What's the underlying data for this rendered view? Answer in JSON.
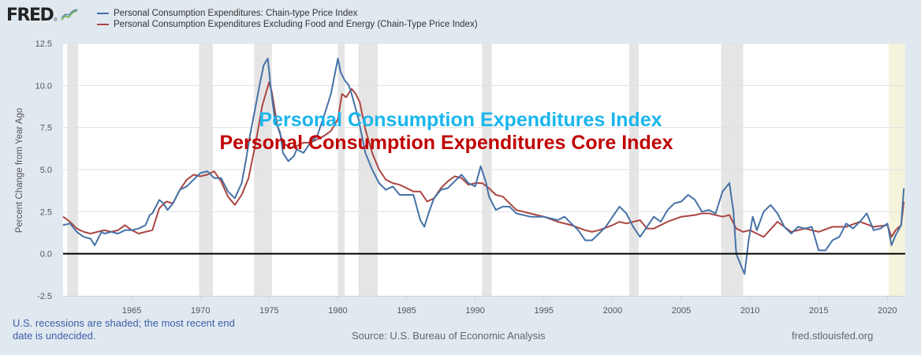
{
  "logo": {
    "text": "FRED",
    "reg": "®",
    "icon": "line-chart-icon"
  },
  "legend": [
    {
      "label": "Personal Consumption Expenditures: Chain-type Price Index",
      "color": "#4572a7"
    },
    {
      "label": "Personal Consumption Expenditures Excluding Food and Energy (Chain-Type Price Index)",
      "color": "#aa4643"
    }
  ],
  "overlay": {
    "line1": "Personal Consumption Expenditures Index",
    "line1_color": "#1ab6ec",
    "line2": "Personal Consumption Expenditures Core Index",
    "line2_color": "#c00000"
  },
  "footer": {
    "note": "U.S. recessions are shaded; the most recent end date is undecided.",
    "source": "Source: U.S. Bureau of Economic Analysis",
    "url": "fred.stlouisfed.org"
  },
  "chart_data": {
    "type": "line",
    "title": "",
    "xlabel": "",
    "ylabel": "Percent Change from Year Ago",
    "xlim": [
      1960.0,
      2021.3
    ],
    "ylim": [
      -2.5,
      12.5
    ],
    "yticks": [
      "12.5",
      "10.0",
      "7.5",
      "5.0",
      "2.5",
      "0.0",
      "-2.5"
    ],
    "ytick_values": [
      12.5,
      10.0,
      7.5,
      5.0,
      2.5,
      0.0,
      -2.5
    ],
    "xticks": [
      "1965",
      "1970",
      "1975",
      "1980",
      "1985",
      "1990",
      "1995",
      "2000",
      "2005",
      "2010",
      "2015",
      "2020"
    ],
    "xtick_values": [
      1965,
      1970,
      1975,
      1980,
      1985,
      1990,
      1995,
      2000,
      2005,
      2010,
      2015,
      2020
    ],
    "grid": true,
    "zero_line": true,
    "legend_position": "top-left",
    "recessions": [
      [
        1960.3,
        1961.1
      ],
      [
        1969.9,
        1970.9
      ],
      [
        1973.9,
        1975.2
      ],
      [
        1980.0,
        1980.5
      ],
      [
        1981.5,
        1982.9
      ],
      [
        1990.5,
        1991.2
      ],
      [
        2001.2,
        2001.9
      ],
      [
        2007.9,
        2009.5
      ]
    ],
    "recession_undecided": [
      2020.1,
      2021.3
    ],
    "series": [
      {
        "name": "Personal Consumption Expenditures: Chain-type Price Index",
        "color": "#4572a7",
        "x": [
          1960.0,
          1960.5,
          1961.0,
          1961.5,
          1962.0,
          1962.3,
          1962.8,
          1963.0,
          1963.5,
          1964.0,
          1964.5,
          1965.0,
          1965.5,
          1966.0,
          1966.3,
          1966.5,
          1967.0,
          1967.3,
          1967.6,
          1968.0,
          1968.5,
          1969.0,
          1969.5,
          1970.0,
          1970.5,
          1971.0,
          1971.5,
          1972.0,
          1972.5,
          1973.0,
          1973.3,
          1973.6,
          1974.0,
          1974.3,
          1974.6,
          1974.9,
          1975.1,
          1975.4,
          1975.8,
          1976.0,
          1976.4,
          1976.8,
          1977.0,
          1977.5,
          1978.0,
          1978.5,
          1979.0,
          1979.5,
          1980.0,
          1980.2,
          1980.5,
          1980.8,
          1981.0,
          1981.5,
          1982.0,
          1982.5,
          1983.0,
          1983.5,
          1984.0,
          1984.5,
          1985.0,
          1985.5,
          1986.0,
          1986.3,
          1986.6,
          1987.0,
          1987.5,
          1988.0,
          1988.5,
          1989.0,
          1989.5,
          1990.0,
          1990.4,
          1990.8,
          1991.0,
          1991.5,
          1992.0,
          1992.5,
          1993.0,
          1994.0,
          1995.0,
          1996.0,
          1996.5,
          1997.0,
          1997.5,
          1998.0,
          1998.5,
          1999.0,
          1999.5,
          2000.0,
          2000.5,
          2001.0,
          2001.5,
          2002.0,
          2002.5,
          2003.0,
          2003.5,
          2004.0,
          2004.5,
          2005.0,
          2005.5,
          2006.0,
          2006.5,
          2007.0,
          2007.5,
          2008.0,
          2008.5,
          2008.8,
          2009.0,
          2009.3,
          2009.6,
          2009.9,
          2010.2,
          2010.5,
          2011.0,
          2011.5,
          2012.0,
          2012.5,
          2013.0,
          2013.5,
          2014.0,
          2014.5,
          2015.0,
          2015.5,
          2016.0,
          2016.5,
          2017.0,
          2017.5,
          2018.0,
          2018.5,
          2019.0,
          2019.5,
          2020.0,
          2020.3,
          2020.6,
          2021.0,
          2021.2
        ],
        "values": [
          1.7,
          1.8,
          1.3,
          1.0,
          0.9,
          0.5,
          1.3,
          1.2,
          1.3,
          1.2,
          1.4,
          1.4,
          1.5,
          1.7,
          2.3,
          2.4,
          3.2,
          3.0,
          2.6,
          3.0,
          3.8,
          4.0,
          4.4,
          4.8,
          4.9,
          4.5,
          4.5,
          3.7,
          3.3,
          4.2,
          5.5,
          7.0,
          8.7,
          10.0,
          11.2,
          11.6,
          10.0,
          8.0,
          7.2,
          6.0,
          5.5,
          5.8,
          6.2,
          6.0,
          6.6,
          7.0,
          8.2,
          9.5,
          11.6,
          10.8,
          10.3,
          10.0,
          9.5,
          8.0,
          6.0,
          5.0,
          4.2,
          3.8,
          4.0,
          3.5,
          3.5,
          3.5,
          2.0,
          1.6,
          2.4,
          3.3,
          3.8,
          3.9,
          4.3,
          4.7,
          4.2,
          4.0,
          5.2,
          4.2,
          3.4,
          2.6,
          2.8,
          2.8,
          2.4,
          2.2,
          2.2,
          2.0,
          2.2,
          1.8,
          1.4,
          0.8,
          0.8,
          1.2,
          1.6,
          2.2,
          2.8,
          2.4,
          1.6,
          1.0,
          1.6,
          2.2,
          1.9,
          2.6,
          3.0,
          3.1,
          3.5,
          3.2,
          2.5,
          2.6,
          2.4,
          3.7,
          4.2,
          2.5,
          0.0,
          -0.6,
          -1.2,
          0.8,
          2.2,
          1.4,
          2.5,
          2.9,
          2.4,
          1.6,
          1.2,
          1.6,
          1.5,
          1.6,
          0.2,
          0.2,
          0.8,
          1.0,
          1.8,
          1.5,
          1.9,
          2.4,
          1.4,
          1.5,
          1.8,
          0.5,
          1.1,
          1.7,
          3.9
        ]
      },
      {
        "name": "Personal Consumption Expenditures Excluding Food and Energy (Chain-Type Price Index)",
        "color": "#aa4643",
        "x": [
          1960.0,
          1960.5,
          1961.0,
          1961.5,
          1962.0,
          1962.5,
          1963.0,
          1963.5,
          1964.0,
          1964.5,
          1965.0,
          1965.5,
          1966.0,
          1966.5,
          1967.0,
          1967.5,
          1968.0,
          1968.5,
          1969.0,
          1969.5,
          1970.0,
          1970.5,
          1971.0,
          1971.5,
          1972.0,
          1972.5,
          1973.0,
          1973.5,
          1974.0,
          1974.5,
          1975.0,
          1975.2,
          1975.6,
          1976.0,
          1976.5,
          1977.0,
          1977.5,
          1978.0,
          1978.5,
          1979.0,
          1979.5,
          1980.0,
          1980.3,
          1980.6,
          1981.0,
          1981.3,
          1981.6,
          1982.0,
          1982.5,
          1983.0,
          1983.5,
          1984.0,
          1984.5,
          1985.0,
          1985.5,
          1986.0,
          1986.5,
          1987.0,
          1987.5,
          1988.0,
          1988.5,
          1989.0,
          1989.5,
          1990.0,
          1990.5,
          1991.0,
          1991.5,
          1992.0,
          1992.5,
          1993.0,
          1994.0,
          1995.0,
          1996.0,
          1997.0,
          1998.0,
          1998.5,
          1999.0,
          2000.0,
          2000.5,
          2001.0,
          2002.0,
          2002.5,
          2003.0,
          2004.0,
          2005.0,
          2006.0,
          2006.5,
          2007.0,
          2008.0,
          2008.5,
          2009.0,
          2009.5,
          2010.0,
          2010.5,
          2011.0,
          2012.0,
          2013.0,
          2014.0,
          2015.0,
          2016.0,
          2017.0,
          2018.0,
          2019.0,
          2020.0,
          2020.3,
          2020.6,
          2021.0,
          2021.2
        ],
        "values": [
          2.2,
          1.9,
          1.5,
          1.3,
          1.2,
          1.3,
          1.4,
          1.3,
          1.4,
          1.7,
          1.4,
          1.2,
          1.3,
          1.4,
          2.7,
          3.1,
          3.0,
          3.8,
          4.4,
          4.7,
          4.6,
          4.7,
          4.9,
          4.3,
          3.4,
          2.9,
          3.5,
          4.5,
          6.5,
          8.8,
          10.2,
          9.6,
          7.6,
          6.6,
          6.3,
          6.4,
          6.6,
          6.6,
          6.8,
          7.0,
          7.3,
          8.0,
          9.5,
          9.3,
          9.8,
          9.5,
          9.0,
          7.4,
          6.0,
          5.0,
          4.4,
          4.2,
          4.1,
          3.9,
          3.7,
          3.7,
          3.1,
          3.3,
          3.9,
          4.3,
          4.6,
          4.5,
          4.1,
          4.2,
          4.2,
          3.9,
          3.5,
          3.4,
          3.0,
          2.6,
          2.4,
          2.2,
          1.9,
          1.7,
          1.4,
          1.3,
          1.4,
          1.7,
          1.9,
          1.8,
          2.0,
          1.5,
          1.5,
          1.9,
          2.2,
          2.3,
          2.4,
          2.4,
          2.2,
          2.3,
          1.5,
          1.3,
          1.4,
          1.2,
          1.0,
          1.9,
          1.3,
          1.5,
          1.3,
          1.6,
          1.6,
          1.9,
          1.6,
          1.7,
          1.0,
          1.4,
          1.7,
          3.1
        ]
      }
    ]
  }
}
